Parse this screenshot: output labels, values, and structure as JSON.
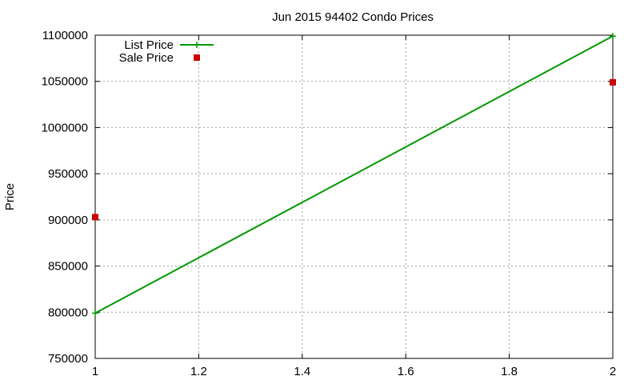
{
  "chart_data": {
    "type": "line",
    "title": "Jun 2015 94402 Condo Prices",
    "xlabel": "",
    "ylabel": "Price",
    "xlim": [
      1,
      2
    ],
    "ylim": [
      750000,
      1100000
    ],
    "xticks": [
      1,
      1.2,
      1.4,
      1.6,
      1.8,
      2
    ],
    "xtick_labels": [
      "1",
      "1.2",
      "1.4",
      "1.6",
      "1.8",
      "2"
    ],
    "yticks": [
      750000,
      800000,
      850000,
      900000,
      950000,
      1000000,
      1050000,
      1100000
    ],
    "ytick_labels": [
      "750000",
      "800000",
      "850000",
      "900000",
      "950000",
      "1000000",
      "1050000",
      "1100000"
    ],
    "grid": true,
    "legend_position": "top-left",
    "series": [
      {
        "name": "List Price",
        "style": "line-with-plus-markers",
        "color": "#009900",
        "x": [
          1,
          2
        ],
        "y": [
          799000,
          1099000
        ]
      },
      {
        "name": "Sale Price",
        "style": "square-markers",
        "color": "#cc0000",
        "x": [
          1,
          2
        ],
        "y": [
          903000,
          1049000
        ]
      }
    ]
  }
}
